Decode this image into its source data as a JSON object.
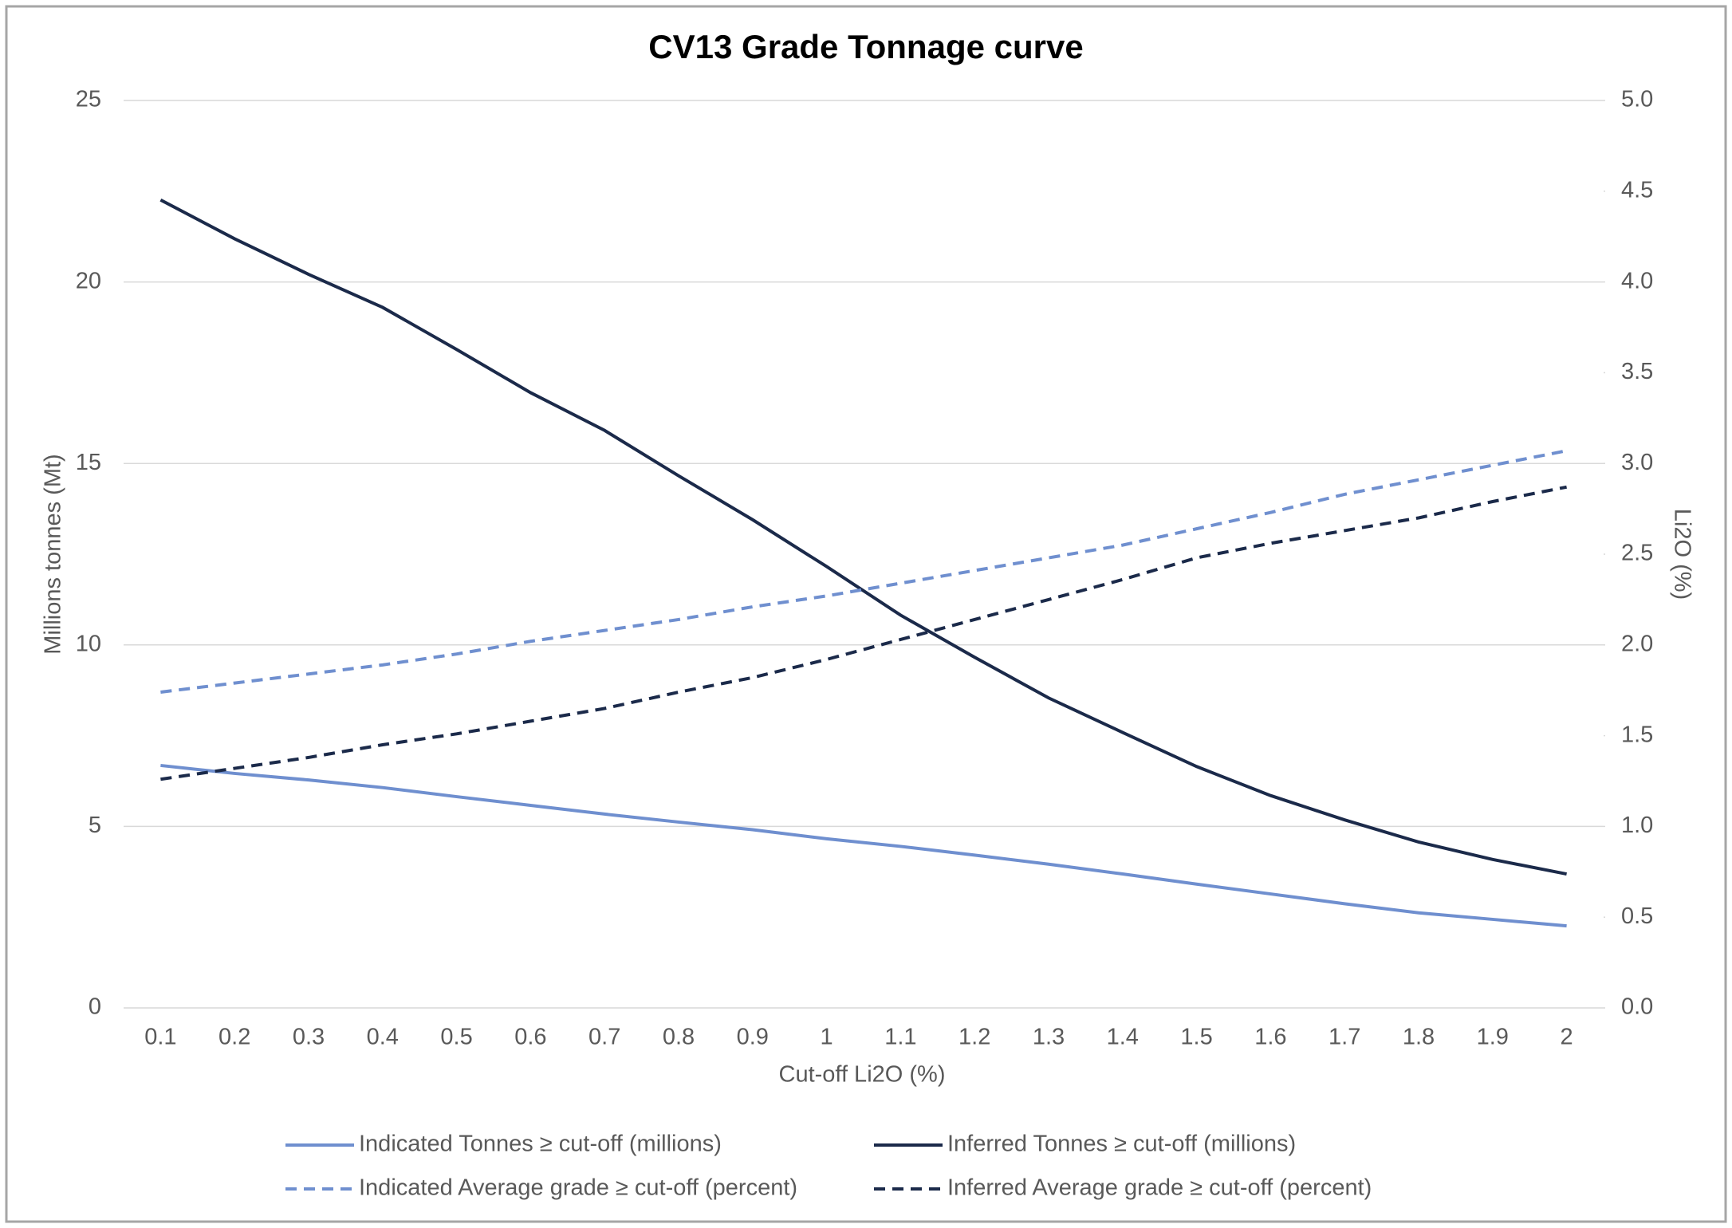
{
  "chart_data": {
    "type": "line",
    "title": "CV13 Grade Tonnage curve",
    "x_label": "Cut-off Li2O (%)",
    "y_label": "Millions tonnes (Mt)",
    "y2_label": "Li2O (%)",
    "categories": [
      "0.1",
      "0.2",
      "0.3",
      "0.4",
      "0.5",
      "0.6",
      "0.7",
      "0.8",
      "0.9",
      "1",
      "1.1",
      "1.2",
      "1.3",
      "1.4",
      "1.5",
      "1.6",
      "1.7",
      "1.8",
      "1.9",
      "2"
    ],
    "series": [
      {
        "name": "Indicated Tonnes ≥ cut-off (millions)",
        "color": "#6f8fcf",
        "line_style": "solid",
        "values": [
          6.68,
          6.46,
          6.28,
          6.07,
          5.82,
          5.58,
          5.34,
          5.12,
          4.91,
          4.66,
          4.45,
          4.21,
          3.96,
          3.69,
          3.41,
          3.14,
          2.87,
          2.62,
          2.44,
          2.26
        ]
      },
      {
        "name": "Inferred Tonnes ≥ cut-off (millions)",
        "color": "#1b2a4a",
        "line_style": "solid",
        "values": [
          22.26,
          21.19,
          20.21,
          19.3,
          18.14,
          16.95,
          15.91,
          14.66,
          13.45,
          12.16,
          10.82,
          9.66,
          8.54,
          7.59,
          6.65,
          5.85,
          5.18,
          4.57,
          4.09,
          3.69
        ]
      },
      {
        "name": "Indicated Average grade ≥ cut-off (percent)",
        "color": "#6f8fcf",
        "line_style": "dashed",
        "axis": "y2",
        "values": [
          1.74,
          1.79,
          1.84,
          1.89,
          1.95,
          2.02,
          2.08,
          2.14,
          2.21,
          2.27,
          2.34,
          2.41,
          2.48,
          2.55,
          2.64,
          2.73,
          2.83,
          2.91,
          2.99,
          3.07
        ]
      },
      {
        "name": "Inferred Average grade ≥ cut-off (percent)",
        "color": "#1b2a4a",
        "line_style": "dashed",
        "axis": "y2",
        "values": [
          1.26,
          1.32,
          1.38,
          1.45,
          1.51,
          1.58,
          1.65,
          1.74,
          1.82,
          1.92,
          2.03,
          2.14,
          2.25,
          2.36,
          2.48,
          2.56,
          2.63,
          2.7,
          2.79,
          2.87
        ]
      }
    ],
    "ylim": [
      0,
      25
    ],
    "yticks": [
      0,
      5,
      10,
      15,
      20,
      25
    ],
    "y2lim": [
      0,
      5
    ],
    "y2ticks": [
      {
        "value": 0,
        "label": "0.0"
      },
      0.5,
      {
        "value": 1,
        "label": "1.0"
      },
      1.5,
      {
        "value": 2,
        "label": "2.0"
      },
      2.5,
      {
        "value": 3,
        "label": "3.0"
      },
      3.5,
      {
        "value": 4,
        "label": "4.0"
      },
      4.5,
      {
        "value": 5,
        "label": "5.0"
      }
    ],
    "grid": true,
    "legend": "bottom"
  }
}
